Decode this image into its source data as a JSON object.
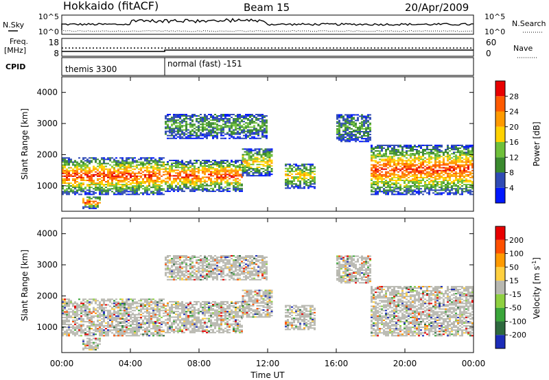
{
  "header": {
    "station": "Hokkaido (fitACF)",
    "beam": "Beam 15",
    "date": "20/Apr/2009"
  },
  "noise_panel": {
    "left_label": "N.Sky",
    "left_ticks": [
      "10^5",
      "10^0"
    ],
    "right_label": "N.Search",
    "right_ticks": [
      "10^5",
      "10^0"
    ]
  },
  "freq_panel": {
    "left_label_1": "Freq.",
    "left_label_2": "[MHz]",
    "left_ticks": [
      "18",
      "8"
    ],
    "right_label": "Nave",
    "right_ticks": [
      "60",
      "0"
    ]
  },
  "cpid_panel": {
    "label": "CPID",
    "modes": [
      "themis 3300",
      "normal (fast) -151"
    ]
  },
  "x_axis": {
    "title": "Time UT",
    "ticks": [
      "00:00",
      "04:00",
      "08:00",
      "12:00",
      "16:00",
      "20:00",
      "00:00"
    ]
  },
  "power_panel": {
    "ylabel": "Slant Range [km]",
    "yticks": [
      "1000",
      "2000",
      "3000",
      "4000"
    ],
    "colorbar_title": "Power [dB]",
    "colorbar_ticks": [
      "4",
      "8",
      "12",
      "16",
      "20",
      "24",
      "28"
    ],
    "colors": [
      "#0018ff",
      "#2f4bb5",
      "#3a8a2e",
      "#6fc03a",
      "#ffd200",
      "#ff9a00",
      "#ff5a00",
      "#e80000"
    ]
  },
  "velocity_panel": {
    "ylabel": "Slant Range [km]",
    "yticks": [
      "1000",
      "2000",
      "3000",
      "4000"
    ],
    "colorbar_title": "Velocity [m s",
    "colorbar_unit_exp": "-1",
    "colorbar_ticks": [
      "200",
      "100",
      "50",
      "15",
      "-15",
      "-50",
      "-100",
      "-200"
    ],
    "colors": [
      "#1c2cb8",
      "#2e6a3e",
      "#3aa63a",
      "#8ed040",
      "#b8b8b0",
      "#ffd040",
      "#ff9a00",
      "#ff5000",
      "#e80000"
    ]
  },
  "chart_data": {
    "type": "heatmap",
    "x_range_hours": [
      0,
      24
    ],
    "y_range_km": [
      180,
      4500
    ],
    "cpid_switch_hour": 6,
    "power_echo_regions": [
      {
        "t0": 0.0,
        "t1": 6.0,
        "r0": 700,
        "r1": 1900,
        "level": "strong"
      },
      {
        "t0": 1.2,
        "t1": 2.2,
        "r0": 250,
        "r1": 650,
        "level": "strong"
      },
      {
        "t0": 6.0,
        "t1": 10.5,
        "r0": 800,
        "r1": 1800,
        "level": "strong"
      },
      {
        "t0": 10.5,
        "t1": 12.2,
        "r0": 1300,
        "r1": 2200,
        "level": "moderate"
      },
      {
        "t0": 6.0,
        "t1": 12.0,
        "r0": 2500,
        "r1": 3300,
        "level": "weak"
      },
      {
        "t0": 13.0,
        "t1": 14.7,
        "r0": 900,
        "r1": 1700,
        "level": "moderate"
      },
      {
        "t0": 16.0,
        "t1": 18.0,
        "r0": 2400,
        "r1": 3300,
        "level": "weak"
      },
      {
        "t0": 18.0,
        "t1": 24.0,
        "r0": 700,
        "r1": 2300,
        "level": "strong"
      }
    ]
  }
}
